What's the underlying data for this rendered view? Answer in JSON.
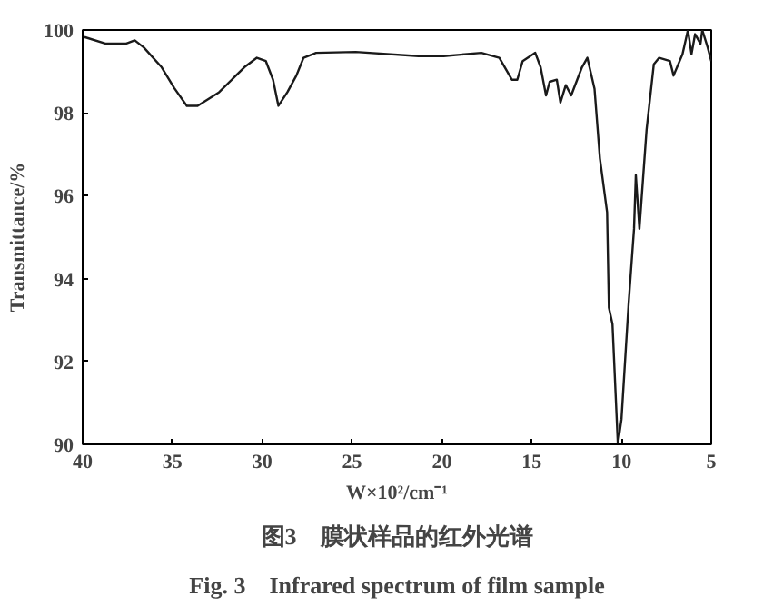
{
  "chart_data": {
    "type": "line",
    "xlabel": "W×10²/cm⁻¹",
    "ylabel": "Transmittance/%",
    "annotations": [
      "图3　膜状样品的红外光谱",
      "Fig. 3　Infrared spectrum of film sample"
    ],
    "x": [
      39.9,
      38.7,
      37.6,
      37.1,
      36.6,
      35.6,
      34.9,
      34.2,
      33.6,
      32.4,
      31.0,
      30.3,
      29.8,
      29.4,
      29.1,
      28.6,
      28.1,
      27.7,
      27.0,
      24.8,
      21.3,
      19.9,
      17.8,
      16.8,
      16.1,
      15.8,
      15.5,
      14.8,
      14.5,
      14.2,
      14.0,
      13.6,
      13.4,
      13.1,
      12.8,
      12.2,
      11.9,
      11.5,
      11.2,
      10.8,
      10.7,
      10.5,
      10.2,
      10.0,
      9.6,
      9.3,
      9.2,
      9.0,
      8.8,
      8.6,
      8.2,
      7.9,
      7.3,
      7.1,
      6.6,
      6.3,
      6.1,
      5.9,
      5.6,
      5.5,
      5.2,
      5.0
    ],
    "series": [
      {
        "color": "#1a1a1a",
        "values": [
          99.83,
          99.67,
          99.67,
          99.75,
          99.58,
          99.1,
          98.6,
          98.17,
          98.17,
          98.5,
          99.1,
          99.33,
          99.25,
          98.8,
          98.17,
          98.5,
          98.9,
          99.33,
          99.45,
          99.47,
          99.37,
          99.37,
          99.45,
          99.33,
          98.8,
          98.8,
          99.25,
          99.45,
          99.1,
          98.42,
          98.75,
          98.8,
          98.25,
          98.67,
          98.42,
          99.1,
          99.33,
          98.58,
          96.9,
          95.6,
          93.3,
          92.9,
          90.0,
          90.6,
          93.4,
          95.2,
          96.5,
          95.2,
          96.4,
          97.6,
          99.17,
          99.33,
          99.25,
          98.9,
          99.42,
          100,
          99.42,
          99.9,
          99.67,
          100,
          99.58,
          99.25
        ]
      }
    ],
    "xlim": [
      40,
      5
    ],
    "ylim": [
      90,
      100
    ],
    "xticks": [
      40,
      35,
      30,
      25,
      20,
      15,
      10,
      5
    ],
    "yticks": [
      90,
      92,
      94,
      96,
      98,
      100
    ],
    "grid": false,
    "line_style": "solid"
  }
}
